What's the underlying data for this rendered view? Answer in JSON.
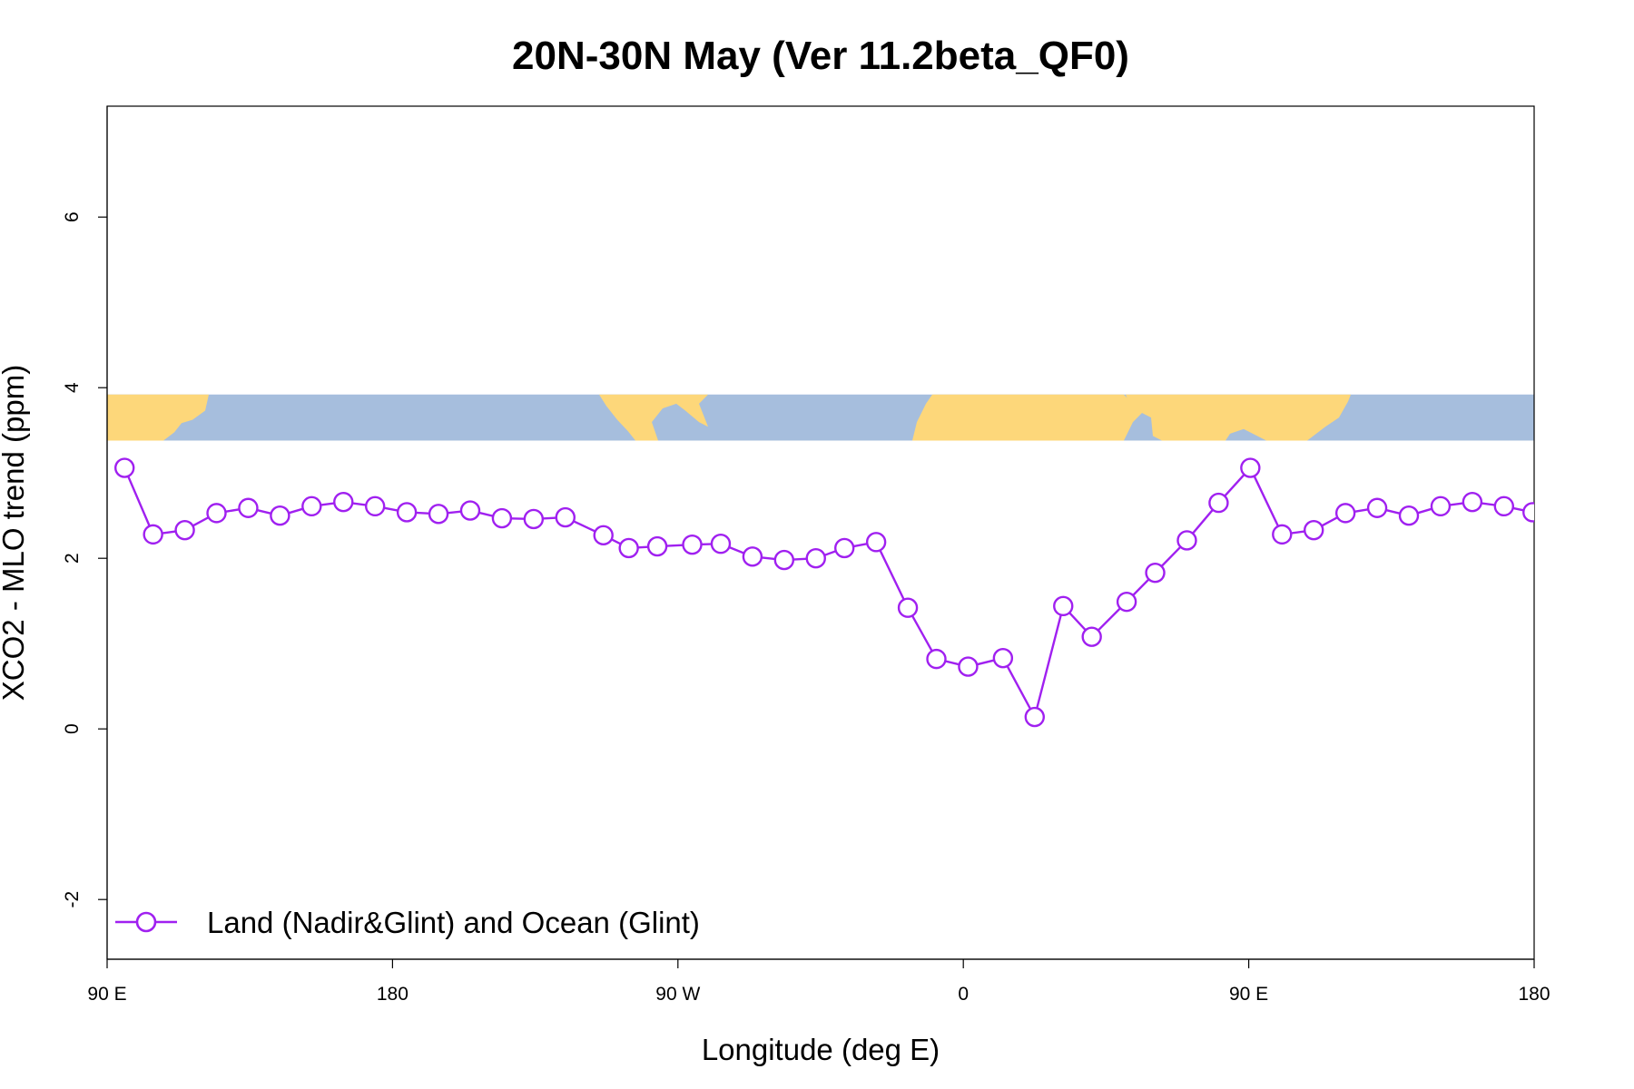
{
  "chart_data": {
    "type": "line",
    "title": "20N-30N May (Ver 11.2beta_QF0)",
    "xlabel": "Longitude (deg E)",
    "ylabel": "XCO2 - MLO trend (ppm)",
    "xlim": [
      90,
      540
    ],
    "ylim": [
      -2.7,
      7.3
    ],
    "x_ticks": [
      {
        "value": 90,
        "label": "90 E"
      },
      {
        "value": 180,
        "label": "180"
      },
      {
        "value": 270,
        "label": "90 W"
      },
      {
        "value": 360,
        "label": "0"
      },
      {
        "value": 450,
        "label": "90 E"
      },
      {
        "value": 540,
        "label": "180"
      }
    ],
    "y_ticks": [
      {
        "value": -2,
        "label": "-2"
      },
      {
        "value": 0,
        "label": "0"
      },
      {
        "value": 2,
        "label": "2"
      },
      {
        "value": 4,
        "label": "4"
      },
      {
        "value": 6,
        "label": "6"
      }
    ],
    "map_strip": {
      "y_range": [
        3.38,
        3.92
      ],
      "ocean_color": "#a6bedd",
      "land_color": "#fdd77a"
    },
    "legend": {
      "position": "bottom-left"
    },
    "series": [
      {
        "name": "Land (Nadir&Glint) and Ocean (Glint)",
        "color": "#a020f0",
        "marker": "open-circle",
        "x": [
          95.5,
          104.5,
          114.5,
          124.5,
          134.5,
          144.5,
          154.5,
          164.5,
          174.5,
          184.5,
          194.5,
          204.5,
          214.5,
          224.5,
          234.5,
          246.5,
          254.5,
          263.5,
          274.5,
          283.5,
          293.5,
          303.5,
          313.5,
          322.5,
          332.5,
          342.5,
          351.5,
          361.5,
          372.5,
          382.5,
          391.5,
          400.5,
          411.5,
          420.5,
          430.5,
          440.5,
          450.5,
          460.5,
          470.5,
          480.5,
          490.5,
          500.5,
          510.5,
          520.5,
          530.5,
          539.5
        ],
        "y": [
          3.06,
          2.28,
          2.33,
          2.53,
          2.59,
          2.5,
          2.61,
          2.66,
          2.61,
          2.54,
          2.52,
          2.56,
          2.47,
          2.46,
          2.48,
          2.27,
          2.12,
          2.14,
          2.16,
          2.17,
          2.02,
          1.98,
          2.0,
          2.12,
          2.19,
          1.42,
          0.82,
          0.73,
          0.83,
          0.14,
          1.44,
          1.08,
          1.49,
          1.83,
          2.21,
          2.65,
          3.06,
          2.28,
          2.33,
          2.53,
          2.59,
          2.5,
          2.61,
          2.66,
          2.61,
          2.54
        ]
      }
    ]
  }
}
